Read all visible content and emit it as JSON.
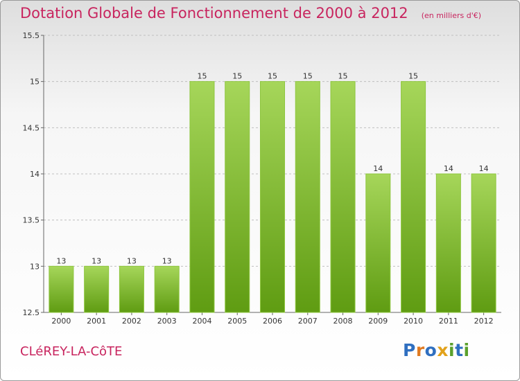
{
  "title": "Dotation Globale de Fonctionnement de 2000 à 2012",
  "unit_note": "(en milliers d'€)",
  "commune": "CLéREY-LA-CôTE",
  "logo": {
    "text": "Proxiti",
    "letters": [
      {
        "ch": "P",
        "color": "#2f6fc0"
      },
      {
        "ch": "r",
        "color": "#e07b22"
      },
      {
        "ch": "o",
        "color": "#2f6fc0"
      },
      {
        "ch": "x",
        "color": "#e2a21b"
      },
      {
        "ch": "i",
        "color": "#5aa02c"
      },
      {
        "ch": "t",
        "color": "#2f6fc0"
      },
      {
        "ch": "i",
        "color": "#5aa02c"
      }
    ]
  },
  "colors": {
    "title": "#c8245e",
    "bar_top": "#a6d65a",
    "bar_bottom": "#5f9c12",
    "bar_edge": "#8ec63f",
    "grid": "#bfbfbf"
  },
  "chart_data": {
    "type": "bar",
    "categories": [
      "2000",
      "2001",
      "2002",
      "2003",
      "2004",
      "2005",
      "2006",
      "2007",
      "2008",
      "2009",
      "2010",
      "2011",
      "2012"
    ],
    "values": [
      13,
      13,
      13,
      13,
      15,
      15,
      15,
      15,
      15,
      14,
      15,
      14,
      14
    ],
    "data_labels": [
      "13",
      "13",
      "13",
      "13",
      "15",
      "15",
      "15",
      "15",
      "15",
      "14",
      "15",
      "14",
      "14"
    ],
    "ylim": [
      12.5,
      15.5
    ],
    "yticks": [
      12.5,
      13,
      13.5,
      14,
      14.5,
      15,
      15.5
    ],
    "ytick_labels": [
      "12.5",
      "13",
      "13.5",
      "14",
      "14.5",
      "15",
      "15.5"
    ],
    "grid": true,
    "grid_style": "dashed horizontal",
    "legend": false,
    "xlabel": "",
    "ylabel": ""
  }
}
